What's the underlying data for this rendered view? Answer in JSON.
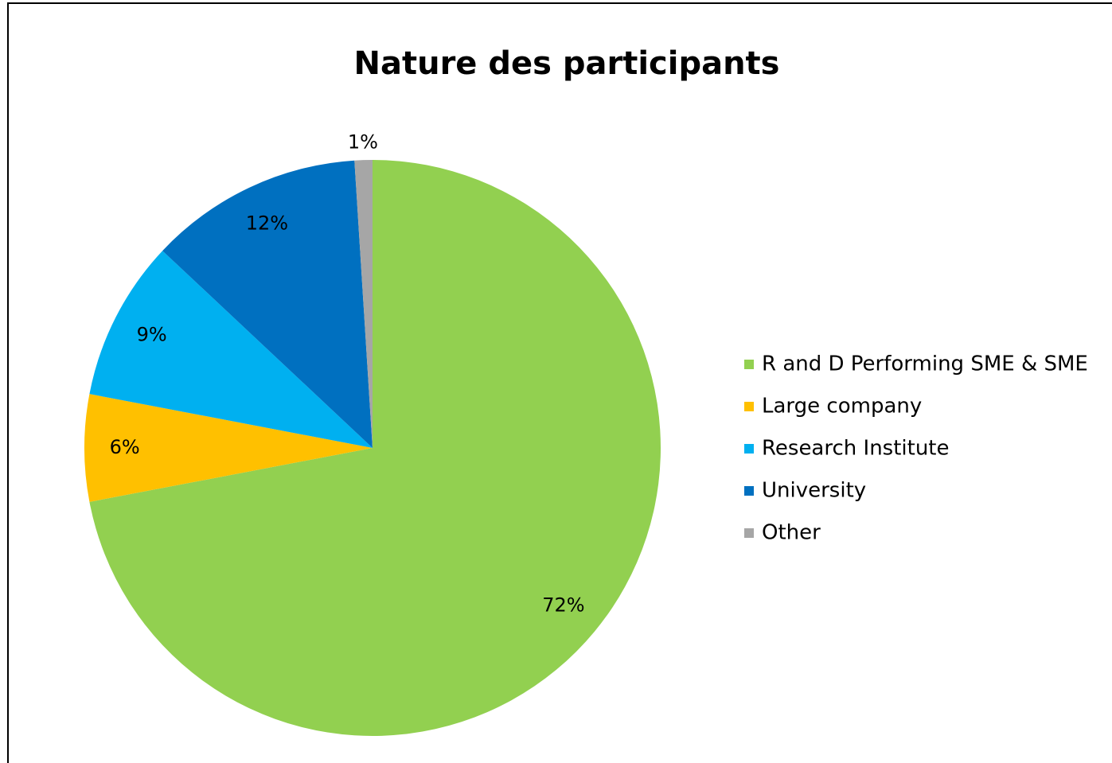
{
  "chart_data": {
    "type": "pie",
    "title": "Nature des participants",
    "categories": [
      "R and D Performing SME & SME",
      "Large company",
      "Research Institute",
      "University",
      "Other"
    ],
    "values": [
      72,
      6,
      9,
      12,
      1
    ],
    "value_labels": [
      "72%",
      "6%",
      "9%",
      "12%",
      "1%"
    ],
    "colors": [
      "#92d050",
      "#ffc000",
      "#00b0f0",
      "#0070c0",
      "#a6a6a6"
    ],
    "legend": "right"
  }
}
